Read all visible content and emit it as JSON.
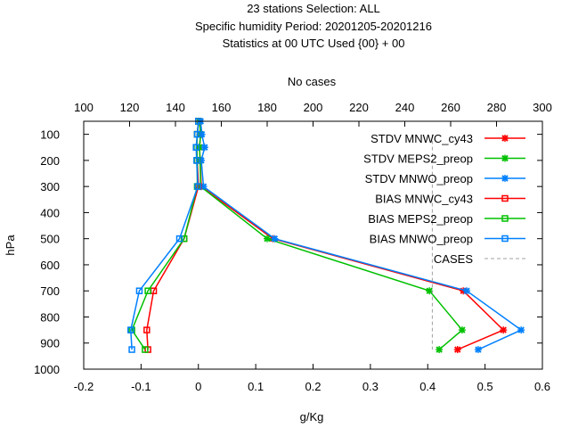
{
  "chart_data": {
    "type": "line",
    "title_lines": [
      "23 stations Selection: ALL",
      "Specific humidity  Period: 20201205-20201216",
      "Statistics at 00 UTC  Used {00} + 00"
    ],
    "xlabel": "g/Kg",
    "ylabel": "hPa",
    "x2label": "No cases",
    "xlim": [
      -0.2,
      0.6
    ],
    "ylim": [
      1000,
      50
    ],
    "x2lim": [
      100,
      300
    ],
    "xticks": [
      "-0.2",
      "-0.1",
      "0",
      "0.1",
      "0.2",
      "0.3",
      "0.4",
      "0.5",
      "0.6"
    ],
    "yticks": [
      "100",
      "200",
      "300",
      "400",
      "500",
      "600",
      "700",
      "800",
      "900",
      "1000"
    ],
    "x2ticks": [
      "100",
      "120",
      "140",
      "160",
      "180",
      "200",
      "220",
      "240",
      "260",
      "280",
      "300"
    ],
    "legend_position": "top-right",
    "series": [
      {
        "name": "STDV MNWC_cy43",
        "color": "#ff0000",
        "marker": "x",
        "points": [
          [
            0.002,
            50
          ],
          [
            0.004,
            100
          ],
          [
            0.002,
            150
          ],
          [
            0.003,
            200
          ],
          [
            0.005,
            300
          ],
          [
            0.13,
            500
          ],
          [
            0.462,
            700
          ],
          [
            0.532,
            850
          ],
          [
            0.452,
            925
          ]
        ]
      },
      {
        "name": "STDV MEPS2_preop",
        "color": "#00c000",
        "marker": "x",
        "points": [
          [
            0.002,
            50
          ],
          [
            0.004,
            100
          ],
          [
            0.002,
            150
          ],
          [
            0.003,
            200
          ],
          [
            0.004,
            300
          ],
          [
            0.12,
            500
          ],
          [
            0.403,
            700
          ],
          [
            0.46,
            850
          ],
          [
            0.42,
            925
          ]
        ]
      },
      {
        "name": "STDV MNWO_preop",
        "color": "#0080ff",
        "marker": "x",
        "points": [
          [
            0.004,
            50
          ],
          [
            0.006,
            100
          ],
          [
            0.011,
            150
          ],
          [
            0.005,
            200
          ],
          [
            0.009,
            300
          ],
          [
            0.133,
            500
          ],
          [
            0.468,
            700
          ],
          [
            0.563,
            850
          ],
          [
            0.488,
            925
          ]
        ]
      },
      {
        "name": "BIAS MNWC_cy43",
        "color": "#ff0000",
        "marker": "square",
        "points": [
          [
            0.0,
            50
          ],
          [
            -0.002,
            100
          ],
          [
            -0.003,
            150
          ],
          [
            -0.002,
            200
          ],
          [
            0.0,
            300
          ],
          [
            -0.025,
            500
          ],
          [
            -0.078,
            700
          ],
          [
            -0.09,
            850
          ],
          [
            -0.088,
            925
          ]
        ]
      },
      {
        "name": "BIAS MEPS2_preop",
        "color": "#00c000",
        "marker": "square",
        "points": [
          [
            0.0,
            50
          ],
          [
            -0.002,
            100
          ],
          [
            -0.003,
            150
          ],
          [
            -0.002,
            200
          ],
          [
            -0.002,
            300
          ],
          [
            -0.025,
            500
          ],
          [
            -0.088,
            700
          ],
          [
            -0.116,
            850
          ],
          [
            -0.093,
            925
          ]
        ]
      },
      {
        "name": "BIAS MNWO_preop",
        "color": "#0080ff",
        "marker": "square",
        "points": [
          [
            0.0,
            50
          ],
          [
            -0.002,
            100
          ],
          [
            -0.004,
            150
          ],
          [
            -0.003,
            200
          ],
          [
            -0.001,
            300
          ],
          [
            -0.033,
            500
          ],
          [
            -0.103,
            700
          ],
          [
            -0.118,
            850
          ],
          [
            -0.116,
            925
          ]
        ]
      },
      {
        "name": "CASES",
        "color": "#a0a0a0",
        "marker": "none",
        "dashed": true,
        "axis": "x2",
        "points": [
          [
            252,
            100
          ],
          [
            252,
            200
          ],
          [
            252,
            300
          ],
          [
            252,
            400
          ],
          [
            252,
            500
          ],
          [
            252,
            600
          ],
          [
            252,
            700
          ],
          [
            252,
            800
          ],
          [
            252,
            850
          ],
          [
            252,
            925
          ]
        ]
      }
    ]
  }
}
